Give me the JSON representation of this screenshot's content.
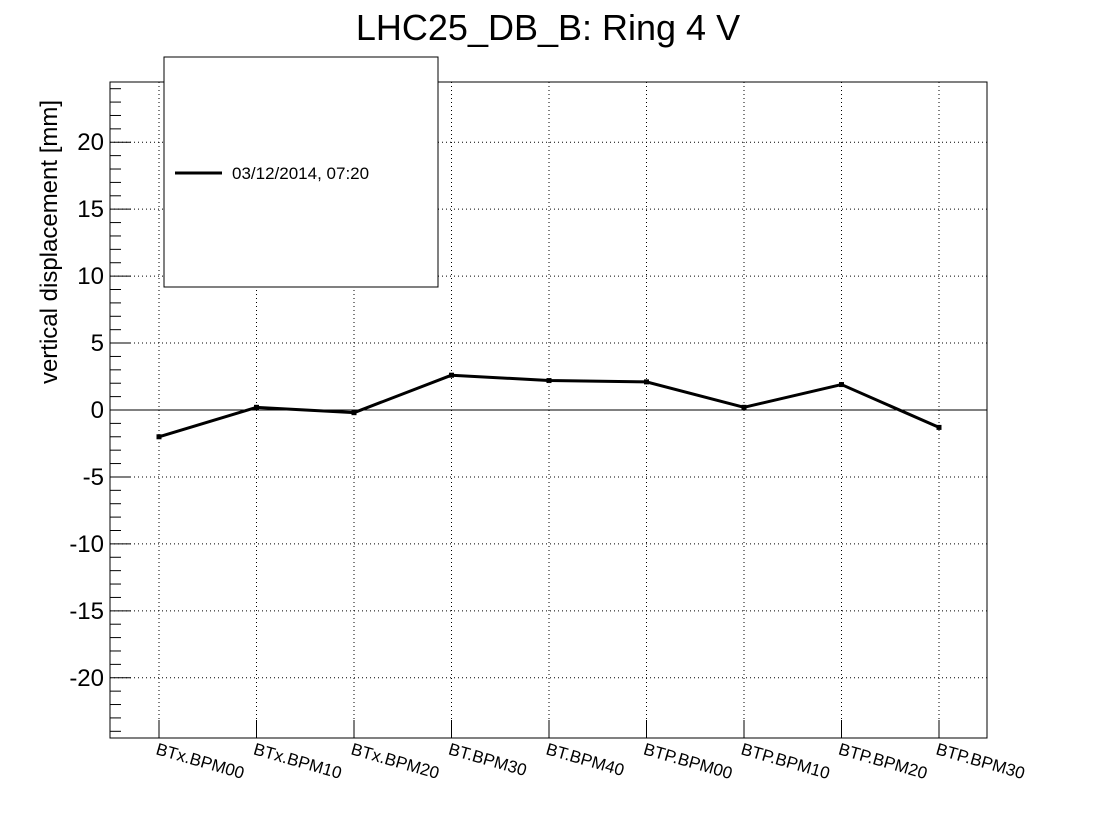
{
  "chart_data": {
    "type": "line",
    "title": "LHC25_DB_B: Ring 4 V",
    "ylabel": "vertical displacement [mm]",
    "xlabel": "",
    "categories": [
      "BTx.BPM00",
      "BTx.BPM10",
      "BTx.BPM20",
      "BT.BPM30",
      "BT.BPM40",
      "BTP.BPM00",
      "BTP.BPM10",
      "BTP.BPM20",
      "BTP.BPM30"
    ],
    "series": [
      {
        "name": "03/12/2014, 07:20",
        "values": [
          -2.0,
          0.2,
          -0.2,
          2.6,
          2.2,
          2.1,
          0.2,
          1.9,
          -1.3
        ],
        "color": "#000000"
      }
    ],
    "ylim": [
      -24.5,
      24.5
    ],
    "yticks": [
      -20,
      -15,
      -10,
      -5,
      0,
      5,
      10,
      15,
      20
    ],
    "ytick_labels": [
      "-20",
      "-15",
      "-10",
      "-5",
      "0",
      "5",
      "10",
      "15",
      "20"
    ],
    "grid": true,
    "zero_line": true,
    "legend_position": "top-left"
  }
}
